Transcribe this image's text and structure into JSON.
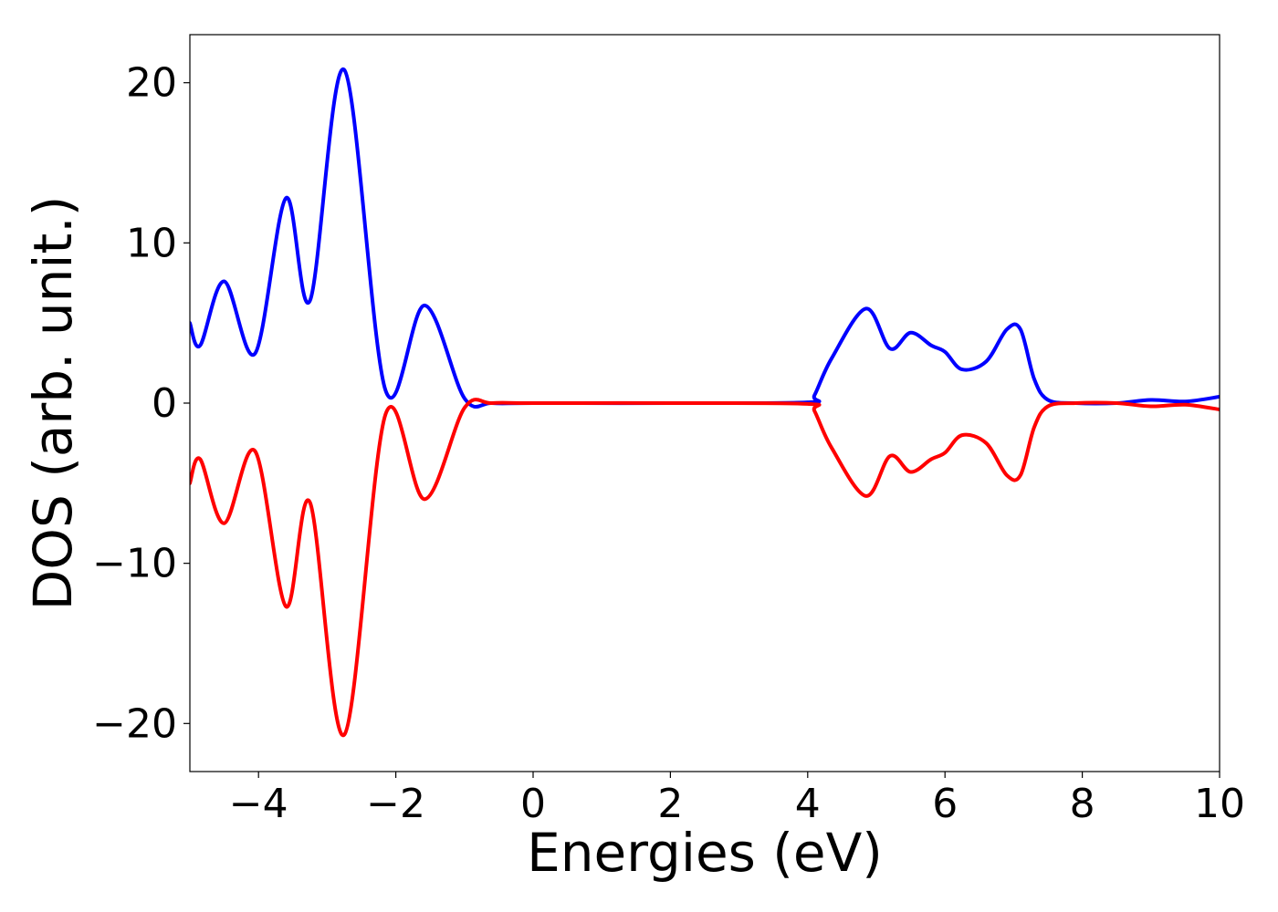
{
  "chart_data": {
    "type": "line",
    "title": "",
    "xlabel": "Energies (eV)",
    "ylabel": "DOS (arb. unit.)",
    "xlim": [
      -5,
      10
    ],
    "ylim": [
      -23,
      23
    ],
    "grid": false,
    "xticks": [
      -4,
      -2,
      0,
      2,
      4,
      6,
      8,
      10
    ],
    "xtick_labels": [
      "−4",
      "−2",
      "0",
      "2",
      "4",
      "6",
      "8",
      "10"
    ],
    "yticks": [
      -20,
      -10,
      0,
      10,
      20
    ],
    "ytick_labels": [
      "−20",
      "−10",
      "0",
      "10",
      "20"
    ],
    "series": [
      {
        "color": "#0000ff",
        "x": [
          -5.0,
          -4.85,
          -4.5,
          -4.05,
          -3.6,
          -3.25,
          -2.75,
          -2.15,
          -1.58,
          -1.0,
          -0.6,
          0.0,
          2.0,
          4.0,
          4.1,
          4.35,
          4.85,
          5.2,
          5.5,
          5.8,
          6.0,
          6.25,
          6.6,
          6.9,
          7.1,
          7.3,
          7.5,
          7.9,
          8.5,
          9.0,
          9.5,
          10.0
        ],
        "y": [
          5.0,
          3.6,
          7.6,
          3.1,
          12.8,
          6.4,
          20.8,
          0.8,
          6.1,
          0.3,
          0.0,
          0.0,
          0.0,
          0.05,
          0.5,
          2.8,
          5.9,
          3.4,
          4.4,
          3.6,
          3.2,
          2.1,
          2.6,
          4.6,
          4.6,
          1.5,
          0.2,
          0.0,
          0.0,
          0.2,
          0.1,
          0.4
        ],
        "values": [
          5.0,
          3.6,
          7.6,
          3.1,
          12.8,
          6.4,
          20.8,
          0.8,
          6.1,
          0.3,
          0.0,
          0.0,
          0.0,
          0.05,
          0.5,
          2.8,
          5.9,
          3.4,
          4.4,
          3.6,
          3.2,
          2.1,
          2.6,
          4.6,
          4.6,
          1.5,
          0.2,
          0.0,
          0.0,
          0.2,
          0.1,
          0.4
        ]
      },
      {
        "color": "#ff0000",
        "x": [
          -5.0,
          -4.85,
          -4.5,
          -4.05,
          -3.6,
          -3.25,
          -2.75,
          -2.15,
          -1.58,
          -1.0,
          -0.6,
          0.0,
          2.0,
          4.0,
          4.1,
          4.35,
          4.85,
          5.2,
          5.5,
          5.8,
          6.0,
          6.25,
          6.6,
          6.9,
          7.1,
          7.3,
          7.5,
          7.9,
          8.5,
          9.0,
          9.5,
          10.0
        ],
        "y": [
          -5.0,
          -3.5,
          -7.5,
          -3.0,
          -12.7,
          -6.2,
          -20.7,
          -0.7,
          -6.0,
          -0.3,
          0.0,
          0.0,
          0.0,
          -0.05,
          -0.5,
          -2.8,
          -5.8,
          -3.3,
          -4.3,
          -3.5,
          -3.1,
          -2.0,
          -2.5,
          -4.5,
          -4.5,
          -1.5,
          -0.2,
          0.0,
          0.0,
          -0.2,
          -0.1,
          -0.4
        ],
        "values": [
          -5.0,
          -3.5,
          -7.5,
          -3.0,
          -12.7,
          -6.2,
          -20.7,
          -0.7,
          -6.0,
          -0.3,
          0.0,
          0.0,
          0.0,
          -0.05,
          -0.5,
          -2.8,
          -5.8,
          -3.3,
          -4.3,
          -3.5,
          -3.1,
          -2.0,
          -2.5,
          -4.5,
          -4.5,
          -1.5,
          -0.2,
          0.0,
          0.0,
          -0.2,
          -0.1,
          -0.4
        ]
      }
    ]
  }
}
